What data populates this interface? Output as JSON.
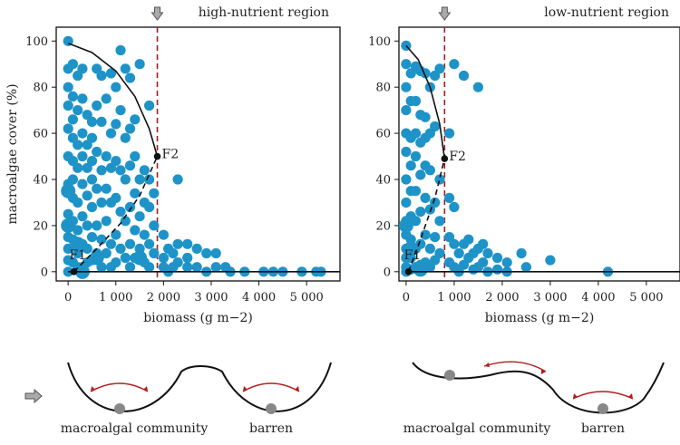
{
  "chart_data": [
    {
      "type": "scatter",
      "title": "high-nutrient region",
      "xlabel": "biomass (g m−2)",
      "ylabel": "macroalgae cover (%)",
      "xlim": [
        -250,
        5700
      ],
      "ylim": [
        -4,
        106
      ],
      "xticks": [
        0,
        1000,
        2000,
        3000,
        4000,
        5000
      ],
      "xtick_labels": [
        "0",
        "1 000",
        "2 000",
        "3 000",
        "4 000",
        "5 000"
      ],
      "yticks": [
        0,
        20,
        40,
        60,
        80,
        100
      ],
      "threshold_x": 1870,
      "fold_points": [
        {
          "label": "F1",
          "x": 120,
          "y": 0
        },
        {
          "label": "F2",
          "x": 1870,
          "y": 50
        }
      ],
      "upper_branch": [
        [
          0,
          99
        ],
        [
          500,
          95
        ],
        [
          1000,
          87
        ],
        [
          1400,
          76
        ],
        [
          1700,
          62
        ],
        [
          1870,
          50
        ]
      ],
      "lower_branch": [
        [
          0,
          0
        ],
        [
          5700,
          0
        ]
      ],
      "unstable_branch": [
        [
          120,
          0
        ],
        [
          600,
          10
        ],
        [
          1100,
          21
        ],
        [
          1500,
          33
        ],
        [
          1870,
          50
        ]
      ],
      "points": [
        [
          0,
          100
        ],
        [
          0,
          88
        ],
        [
          0,
          80
        ],
        [
          0,
          72
        ],
        [
          0,
          62
        ],
        [
          0,
          50
        ],
        [
          0,
          38
        ],
        [
          0,
          35
        ],
        [
          0,
          25
        ],
        [
          0,
          20
        ],
        [
          0,
          15
        ],
        [
          0,
          10
        ],
        [
          0,
          5
        ],
        [
          0,
          0
        ],
        [
          100,
          90
        ],
        [
          100,
          76
        ],
        [
          100,
          66
        ],
        [
          100,
          58
        ],
        [
          100,
          48
        ],
        [
          100,
          40
        ],
        [
          100,
          32
        ],
        [
          100,
          22
        ],
        [
          100,
          14
        ],
        [
          100,
          4
        ],
        [
          200,
          85
        ],
        [
          200,
          70
        ],
        [
          200,
          55
        ],
        [
          200,
          45
        ],
        [
          200,
          30
        ],
        [
          200,
          18
        ],
        [
          200,
          8
        ],
        [
          200,
          2
        ],
        [
          300,
          88
        ],
        [
          300,
          75
        ],
        [
          300,
          60
        ],
        [
          300,
          50
        ],
        [
          300,
          38
        ],
        [
          300,
          24
        ],
        [
          300,
          12
        ],
        [
          300,
          2
        ],
        [
          400,
          68
        ],
        [
          400,
          55
        ],
        [
          400,
          45
        ],
        [
          400,
          33
        ],
        [
          400,
          20
        ],
        [
          400,
          10
        ],
        [
          400,
          4
        ],
        [
          500,
          65
        ],
        [
          500,
          58
        ],
        [
          500,
          48
        ],
        [
          500,
          40
        ],
        [
          500,
          28
        ],
        [
          500,
          15
        ],
        [
          500,
          5
        ],
        [
          600,
          88
        ],
        [
          600,
          72
        ],
        [
          600,
          52
        ],
        [
          600,
          36
        ],
        [
          600,
          20
        ],
        [
          600,
          8
        ],
        [
          700,
          85
        ],
        [
          700,
          65
        ],
        [
          700,
          44
        ],
        [
          700,
          30
        ],
        [
          700,
          14
        ],
        [
          700,
          2
        ],
        [
          800,
          75
        ],
        [
          800,
          50
        ],
        [
          800,
          36
        ],
        [
          800,
          22
        ],
        [
          800,
          8
        ],
        [
          900,
          86
        ],
        [
          900,
          60
        ],
        [
          900,
          45
        ],
        [
          900,
          30
        ],
        [
          900,
          12
        ],
        [
          900,
          2
        ],
        [
          1000,
          80
        ],
        [
          1000,
          64
        ],
        [
          1000,
          48
        ],
        [
          1000,
          32
        ],
        [
          1000,
          16
        ],
        [
          1000,
          4
        ],
        [
          1100,
          96
        ],
        [
          1100,
          70
        ],
        [
          1100,
          44
        ],
        [
          1100,
          26
        ],
        [
          1100,
          10
        ],
        [
          1200,
          88
        ],
        [
          1200,
          58
        ],
        [
          1200,
          40
        ],
        [
          1200,
          22
        ],
        [
          1200,
          6
        ],
        [
          1300,
          84
        ],
        [
          1300,
          62
        ],
        [
          1300,
          46
        ],
        [
          1300,
          28
        ],
        [
          1300,
          12
        ],
        [
          1300,
          2
        ],
        [
          1400,
          66
        ],
        [
          1400,
          50
        ],
        [
          1400,
          34
        ],
        [
          1400,
          18
        ],
        [
          1400,
          6
        ],
        [
          1500,
          90
        ],
        [
          1500,
          40
        ],
        [
          1500,
          24
        ],
        [
          1500,
          10
        ],
        [
          1600,
          44
        ],
        [
          1600,
          30
        ],
        [
          1600,
          16
        ],
        [
          1600,
          4
        ],
        [
          1700,
          72
        ],
        [
          1700,
          40
        ],
        [
          1700,
          28
        ],
        [
          1700,
          12
        ],
        [
          1700,
          2
        ],
        [
          1800,
          34
        ],
        [
          1800,
          20
        ],
        [
          1800,
          8
        ],
        [
          2000,
          16
        ],
        [
          2000,
          6
        ],
        [
          2000,
          2
        ],
        [
          2100,
          10
        ],
        [
          2100,
          0
        ],
        [
          2200,
          8
        ],
        [
          2200,
          2
        ],
        [
          2300,
          40
        ],
        [
          2300,
          12
        ],
        [
          2300,
          4
        ],
        [
          2500,
          12
        ],
        [
          2500,
          6
        ],
        [
          2500,
          2
        ],
        [
          2700,
          10
        ],
        [
          2700,
          2
        ],
        [
          2900,
          8
        ],
        [
          2900,
          0
        ],
        [
          3100,
          8
        ],
        [
          3100,
          2
        ],
        [
          3300,
          2
        ],
        [
          3400,
          0
        ],
        [
          3700,
          0
        ],
        [
          4100,
          0
        ],
        [
          4300,
          0
        ],
        [
          4500,
          0
        ],
        [
          4900,
          0
        ],
        [
          5200,
          0
        ],
        [
          5300,
          0
        ]
      ],
      "big_points": [
        [
          0,
          35
        ],
        [
          0,
          20
        ],
        [
          200,
          12
        ],
        [
          600,
          6
        ],
        [
          1500,
          6
        ],
        [
          300,
          0
        ]
      ]
    },
    {
      "type": "scatter",
      "title": "low-nutrient region",
      "xlabel": "biomass (g m−2)",
      "ylabel": "",
      "xlim": [
        -150,
        5700
      ],
      "ylim": [
        -4,
        106
      ],
      "xticks": [
        0,
        1000,
        2000,
        3000,
        4000,
        5000
      ],
      "xtick_labels": [
        "0",
        "1 000",
        "2 000",
        "3 000",
        "4 000",
        "5 000"
      ],
      "yticks": [
        0,
        20,
        40,
        60,
        80,
        100
      ],
      "threshold_x": 800,
      "fold_points": [
        {
          "label": "F1",
          "x": 50,
          "y": 0
        },
        {
          "label": "F2",
          "x": 800,
          "y": 49
        }
      ],
      "upper_branch": [
        [
          0,
          98
        ],
        [
          250,
          92
        ],
        [
          500,
          80
        ],
        [
          700,
          64
        ],
        [
          800,
          49
        ]
      ],
      "lower_branch": [
        [
          0,
          0
        ],
        [
          5700,
          0
        ]
      ],
      "unstable_branch": [
        [
          50,
          0
        ],
        [
          300,
          14
        ],
        [
          600,
          32
        ],
        [
          800,
          49
        ]
      ],
      "points": [
        [
          0,
          98
        ],
        [
          0,
          90
        ],
        [
          0,
          80
        ],
        [
          0,
          70
        ],
        [
          0,
          60
        ],
        [
          0,
          52
        ],
        [
          0,
          40
        ],
        [
          0,
          30
        ],
        [
          0,
          22
        ],
        [
          0,
          16
        ],
        [
          0,
          10
        ],
        [
          0,
          6
        ],
        [
          0,
          2
        ],
        [
          0,
          0
        ],
        [
          100,
          86
        ],
        [
          100,
          74
        ],
        [
          100,
          58
        ],
        [
          100,
          46
        ],
        [
          100,
          35
        ],
        [
          100,
          24
        ],
        [
          100,
          14
        ],
        [
          100,
          6
        ],
        [
          100,
          1
        ],
        [
          200,
          89
        ],
        [
          200,
          74
        ],
        [
          200,
          60
        ],
        [
          200,
          50
        ],
        [
          200,
          35
        ],
        [
          200,
          22
        ],
        [
          200,
          10
        ],
        [
          200,
          2
        ],
        [
          300,
          87
        ],
        [
          300,
          68
        ],
        [
          300,
          56
        ],
        [
          300,
          42
        ],
        [
          300,
          26
        ],
        [
          300,
          12
        ],
        [
          300,
          3
        ],
        [
          400,
          86
        ],
        [
          400,
          67
        ],
        [
          400,
          58
        ],
        [
          400,
          46
        ],
        [
          400,
          32
        ],
        [
          400,
          16
        ],
        [
          400,
          4
        ],
        [
          500,
          80
        ],
        [
          500,
          60
        ],
        [
          500,
          44
        ],
        [
          500,
          27
        ],
        [
          500,
          10
        ],
        [
          500,
          2
        ],
        [
          600,
          85
        ],
        [
          600,
          63
        ],
        [
          600,
          30
        ],
        [
          600,
          15
        ],
        [
          600,
          5
        ],
        [
          700,
          88
        ],
        [
          700,
          40
        ],
        [
          700,
          22
        ],
        [
          700,
          8
        ],
        [
          900,
          60
        ],
        [
          900,
          32
        ],
        [
          900,
          15
        ],
        [
          900,
          4
        ],
        [
          1000,
          90
        ],
        [
          1000,
          28
        ],
        [
          1000,
          12
        ],
        [
          1000,
          2
        ],
        [
          1100,
          8
        ],
        [
          1100,
          0
        ],
        [
          1200,
          85
        ],
        [
          1200,
          12
        ],
        [
          1200,
          3
        ],
        [
          1300,
          14
        ],
        [
          1300,
          6
        ],
        [
          1400,
          8
        ],
        [
          1400,
          1
        ],
        [
          1500,
          80
        ],
        [
          1500,
          10
        ],
        [
          1500,
          2
        ],
        [
          1600,
          12
        ],
        [
          1600,
          4
        ],
        [
          1700,
          8
        ],
        [
          1700,
          0
        ],
        [
          1900,
          6
        ],
        [
          1900,
          1
        ],
        [
          2100,
          4
        ],
        [
          2100,
          0
        ],
        [
          2400,
          8
        ],
        [
          2500,
          2
        ],
        [
          3000,
          5
        ],
        [
          4200,
          0
        ]
      ],
      "big_points": [
        [
          0,
          20
        ],
        [
          100,
          10
        ],
        [
          300,
          1
        ]
      ]
    }
  ],
  "diagrams": {
    "left_labels": [
      "macroalgal community",
      "barren"
    ],
    "right_labels": [
      "macroalgal community",
      "barren"
    ]
  },
  "colors": {
    "points": "#1e93c8",
    "threshold": "#a02020",
    "curve": "#111111",
    "arrow": "#b01e1e",
    "ball": "#888888"
  }
}
